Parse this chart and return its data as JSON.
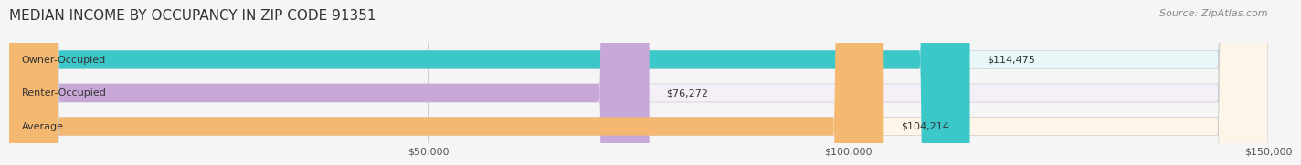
{
  "title": "MEDIAN INCOME BY OCCUPANCY IN ZIP CODE 91351",
  "source": "Source: ZipAtlas.com",
  "categories": [
    "Owner-Occupied",
    "Renter-Occupied",
    "Average"
  ],
  "values": [
    114475,
    76272,
    104214
  ],
  "labels": [
    "$114,475",
    "$76,272",
    "$104,214"
  ],
  "bar_colors": [
    "#3cc8c8",
    "#c8a8d8",
    "#f5b870"
  ],
  "bar_bg_colors": [
    "#e8f8f8",
    "#f5f0f8",
    "#fdf5e8"
  ],
  "xlim": [
    0,
    150000
  ],
  "xticks": [
    0,
    50000,
    100000,
    150000
  ],
  "xticklabels": [
    "$50,000",
    "$100,000",
    "$150,000"
  ],
  "title_fontsize": 11,
  "source_fontsize": 8,
  "label_fontsize": 8,
  "bar_height": 0.55,
  "background_color": "#f5f5f5",
  "bar_bg_alpha": 1.0
}
